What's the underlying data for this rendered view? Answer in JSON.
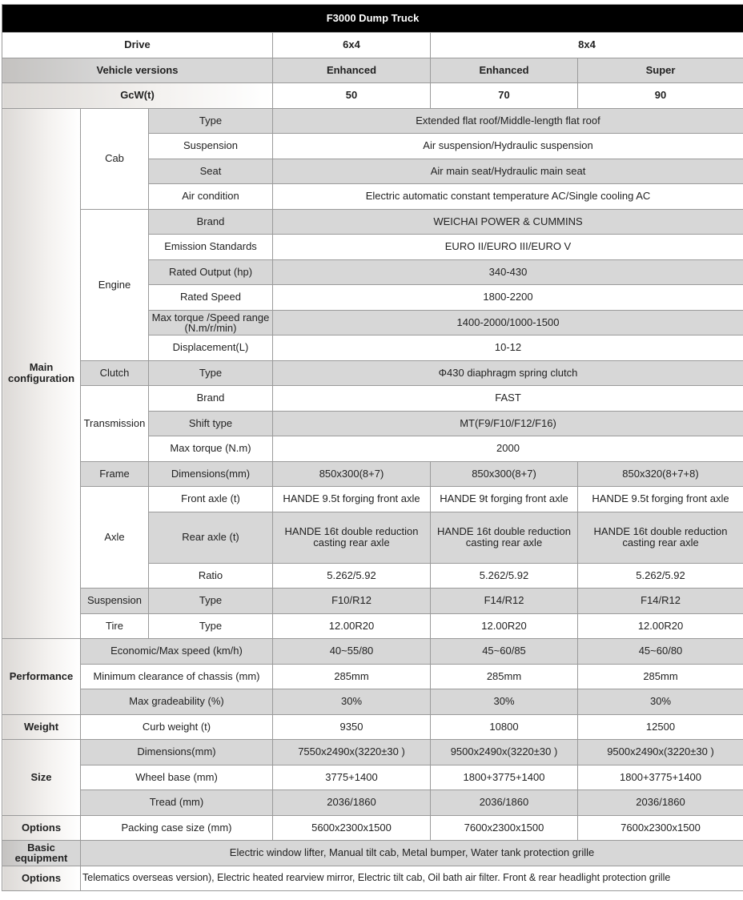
{
  "title": "F3000 Dump Truck",
  "header": {
    "drive": {
      "label": "Drive",
      "values": [
        "6x4",
        "8x4"
      ]
    },
    "versions": {
      "label": "Vehicle versions",
      "values": [
        "Enhanced",
        "Enhanced",
        "Super"
      ]
    },
    "gcw": {
      "label": "GcW(t)",
      "values": [
        "50",
        "70",
        "90"
      ]
    }
  },
  "main": {
    "label": "Main configuration",
    "cab": {
      "label": "Cab",
      "rows": [
        {
          "label": "Type",
          "value": "Extended flat roof/Middle-length flat roof"
        },
        {
          "label": "Suspension",
          "value": "Air suspension/Hydraulic suspension"
        },
        {
          "label": "Seat",
          "value": "Air main seat/Hydraulic main seat"
        },
        {
          "label": "Air condition",
          "value": "Electric automatic constant temperature AC/Single cooling AC"
        }
      ]
    },
    "engine": {
      "label": "Engine",
      "rows": [
        {
          "label": "Brand",
          "value": "WEICHAI POWER & CUMMINS"
        },
        {
          "label": "Emission Standards",
          "value": "EURO II/EURO III/EURO V"
        },
        {
          "label": "Rated Output (hp)",
          "value": "340-430"
        },
        {
          "label": "Rated Speed",
          "value": "1800-2200"
        },
        {
          "label": "Max torque /Speed range (N.m/r/min)",
          "value": "1400-2000/1000-1500"
        },
        {
          "label": "Displacement(L)",
          "value": "10-12"
        }
      ]
    },
    "clutch": {
      "label": "Clutch",
      "rows": [
        {
          "label": "Type",
          "value": "Φ430 diaphragm spring clutch"
        }
      ]
    },
    "transmission": {
      "label": "Transmission",
      "rows": [
        {
          "label": "Brand",
          "value": "FAST"
        },
        {
          "label": "Shift type",
          "value": "MT(F9/F10/F12/F16)"
        },
        {
          "label": "Max torque (N.m)",
          "value": "2000"
        }
      ]
    },
    "frame": {
      "label": "Frame",
      "rows": [
        {
          "label": "Dimensions(mm)",
          "values": [
            "850x300(8+7)",
            "850x300(8+7)",
            "850x320(8+7+8)"
          ]
        }
      ]
    },
    "axle": {
      "label": "Axle",
      "rows": [
        {
          "label": "Front axle (t)",
          "values": [
            "HANDE 9.5t forging front axle",
            "HANDE 9t forging front axle",
            "HANDE 9.5t forging front axle"
          ]
        },
        {
          "label": "Rear axle (t)",
          "values": [
            "HANDE 16t double reduction casting rear axle",
            "HANDE 16t double reduction casting rear axle",
            "HANDE 16t double reduction casting rear axle"
          ]
        },
        {
          "label": "Ratio",
          "values": [
            "5.262/5.92",
            "5.262/5.92",
            "5.262/5.92"
          ]
        }
      ]
    },
    "suspension": {
      "label": "Suspension",
      "rows": [
        {
          "label": "Type",
          "values": [
            "F10/R12",
            "F14/R12",
            "F14/R12"
          ]
        }
      ]
    },
    "tire": {
      "label": "Tire",
      "rows": [
        {
          "label": "Type",
          "values": [
            "12.00R20",
            "12.00R20",
            "12.00R20"
          ]
        }
      ]
    }
  },
  "performance": {
    "label": "Performance",
    "rows": [
      {
        "label": "Economic/Max speed (km/h)",
        "values": [
          "40~55/80",
          "45~60/85",
          "45~60/80"
        ]
      },
      {
        "label": "Minimum clearance of chassis (mm)",
        "values": [
          "285mm",
          "285mm",
          "285mm"
        ]
      },
      {
        "label": "Max gradeability (%)",
        "values": [
          "30%",
          "30%",
          "30%"
        ]
      }
    ]
  },
  "weight": {
    "label": "Weight",
    "rows": [
      {
        "label": "Curb weight (t)",
        "values": [
          "9350",
          "10800",
          "12500"
        ]
      }
    ]
  },
  "size": {
    "label": "Size",
    "rows": [
      {
        "label": "Dimensions(mm)",
        "values": [
          "7550x2490x(3220±30 )",
          "9500x2490x(3220±30 )",
          "9500x2490x(3220±30 )"
        ]
      },
      {
        "label": "Wheel base (mm)",
        "values": [
          "3775+1400",
          "1800+3775+1400",
          "1800+3775+1400"
        ]
      },
      {
        "label": "Tread (mm)",
        "values": [
          "2036/1860",
          "2036/1860",
          "2036/1860"
        ]
      }
    ]
  },
  "options1": {
    "label": "Options",
    "rows": [
      {
        "label": "Packing case size (mm)",
        "values": [
          "5600x2300x1500",
          "7600x2300x1500",
          "7600x2300x1500"
        ]
      }
    ]
  },
  "basic": {
    "label": "Basic equipment",
    "value": "Electric window lifter, Manual tilt cab, Metal bumper, Water tank protection grille"
  },
  "options2": {
    "label": "Options",
    "value": "Telematics overseas version), Electric heated rearview mirror, Electric tilt cab, Oil bath air filter. Front & rear headlight protection grille"
  }
}
